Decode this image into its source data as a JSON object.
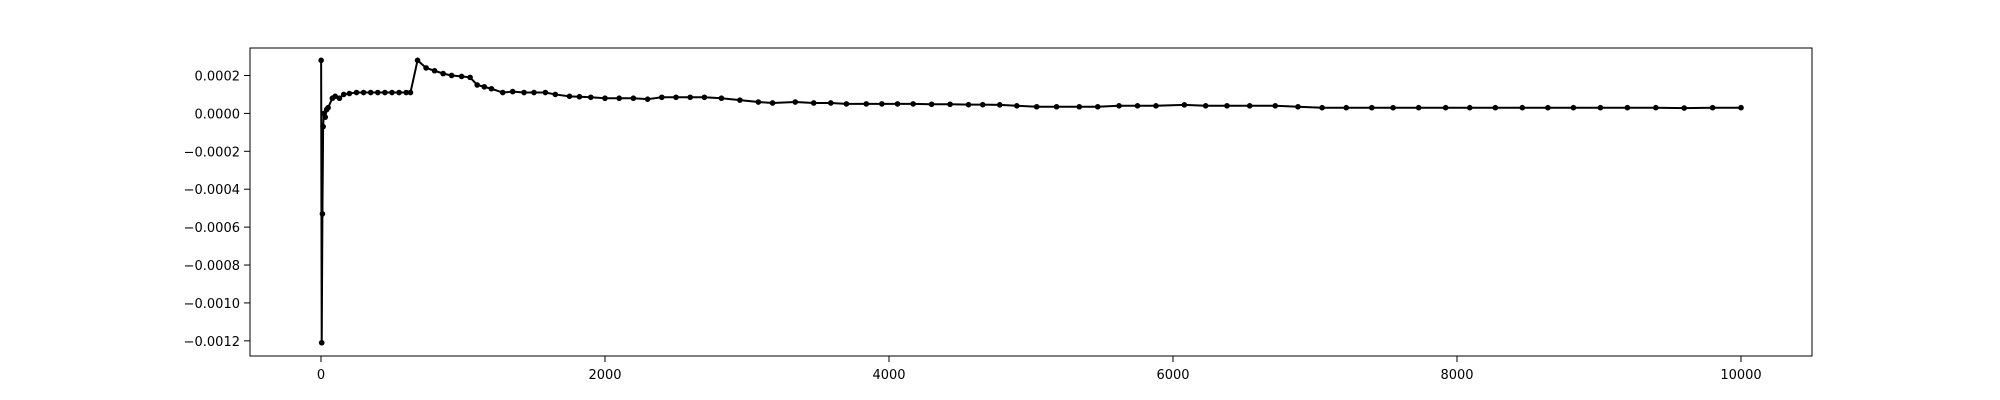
{
  "chart_data": {
    "type": "line",
    "title": "",
    "xlabel": "",
    "ylabel": "",
    "xlim": [
      -500,
      10500
    ],
    "ylim": [
      -0.00128,
      0.000345
    ],
    "x_ticks": [
      {
        "value": 0,
        "label": "0"
      },
      {
        "value": 2000,
        "label": "2000"
      },
      {
        "value": 4000,
        "label": "4000"
      },
      {
        "value": 6000,
        "label": "6000"
      },
      {
        "value": 8000,
        "label": "8000"
      },
      {
        "value": 10000,
        "label": "10000"
      }
    ],
    "y_ticks": [
      {
        "value": -0.0012,
        "label": "−0.0012"
      },
      {
        "value": -0.001,
        "label": "−0.0010"
      },
      {
        "value": -0.0008,
        "label": "−0.0008"
      },
      {
        "value": -0.0006,
        "label": "−0.0006"
      },
      {
        "value": -0.0004,
        "label": "−0.0004"
      },
      {
        "value": -0.0002,
        "label": "−0.0002"
      },
      {
        "value": 0,
        "label": "0.0000"
      },
      {
        "value": 0.0002,
        "label": "0.0002"
      }
    ],
    "grid": false,
    "legend": "none",
    "series": [
      {
        "color": "#000000",
        "marker": "dot",
        "x": [
          1,
          5,
          10,
          15,
          20,
          30,
          40,
          50,
          80,
          100,
          130,
          160,
          200,
          250,
          300,
          350,
          400,
          450,
          500,
          550,
          600,
          630,
          680,
          740,
          800,
          860,
          920,
          990,
          1050,
          1100,
          1150,
          1200,
          1280,
          1350,
          1430,
          1500,
          1580,
          1650,
          1750,
          1820,
          1900,
          2000,
          2100,
          2200,
          2300,
          2400,
          2500,
          2600,
          2700,
          2820,
          2950,
          3080,
          3180,
          3340,
          3470,
          3590,
          3700,
          3840,
          3950,
          4060,
          4170,
          4300,
          4430,
          4560,
          4660,
          4780,
          4900,
          5040,
          5180,
          5340,
          5470,
          5620,
          5750,
          5880,
          6080,
          6230,
          6380,
          6540,
          6720,
          6880,
          7050,
          7220,
          7400,
          7550,
          7730,
          7920,
          8090,
          8270,
          8460,
          8640,
          8820,
          9010,
          9200,
          9400,
          9600,
          9800,
          10000
        ],
        "y": [
          0.00028,
          -0.00121,
          -0.00053,
          -7e-05,
          0.0,
          -2e-05,
          2e-05,
          3e-05,
          8e-05,
          9e-05,
          8e-05,
          0.0001,
          0.000105,
          0.00011,
          0.00011,
          0.00011,
          0.00011,
          0.00011,
          0.00011,
          0.00011,
          0.00011,
          0.00011,
          0.00028,
          0.00024,
          0.000225,
          0.00021,
          0.0002,
          0.000195,
          0.00019,
          0.00015,
          0.00014,
          0.00013,
          0.00011,
          0.000115,
          0.00011,
          0.00011,
          0.00011,
          0.0001,
          9e-05,
          8.8e-05,
          8.5e-05,
          8e-05,
          8e-05,
          8e-05,
          7.5e-05,
          8.5e-05,
          8.5e-05,
          8.5e-05,
          8.5e-05,
          8e-05,
          7e-05,
          6e-05,
          5.5e-05,
          6e-05,
          5.5e-05,
          5.5e-05,
          5e-05,
          5e-05,
          5e-05,
          5e-05,
          5e-05,
          4.8e-05,
          4.8e-05,
          4.6e-05,
          4.6e-05,
          4.5e-05,
          4e-05,
          3.5e-05,
          3.5e-05,
          3.5e-05,
          3.5e-05,
          4e-05,
          4e-05,
          4e-05,
          4.5e-05,
          4e-05,
          4e-05,
          4e-05,
          4e-05,
          3.5e-05,
          3e-05,
          3e-05,
          3e-05,
          3e-05,
          3e-05,
          3e-05,
          3e-05,
          3e-05,
          3e-05,
          3e-05,
          3e-05,
          3e-05,
          3e-05,
          3e-05,
          2.8e-05,
          3e-05,
          3e-05
        ]
      }
    ]
  }
}
